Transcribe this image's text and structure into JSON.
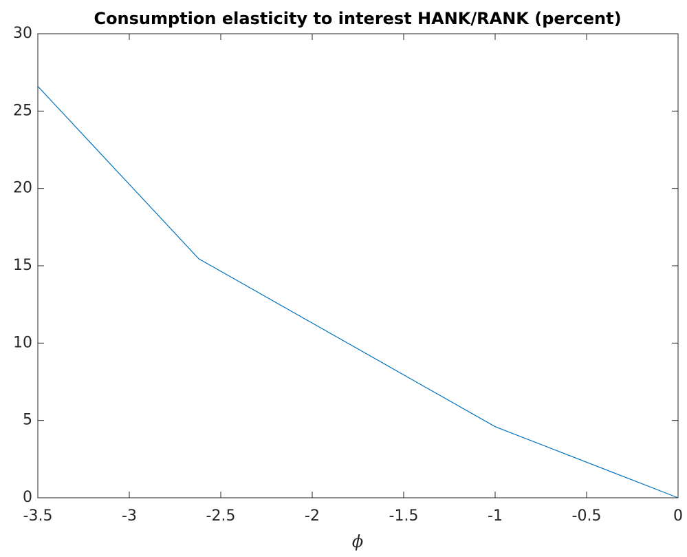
{
  "chart_data": {
    "type": "line",
    "title": "Consumption elasticity to interest HANK/RANK (percent)",
    "x_label": "ϕ",
    "x": [
      -3.5,
      -2.62,
      -1,
      0
    ],
    "values": [
      26.6,
      15.45,
      4.6,
      0
    ],
    "color": "#0072bd",
    "xlim": [
      -3.5,
      0
    ],
    "xticks": [
      -3.5,
      -3,
      -2.5,
      -2,
      -1.5,
      -1,
      -0.5,
      0
    ],
    "ylim": [
      0,
      30
    ],
    "yticks": [
      0,
      5,
      10,
      15,
      20,
      25,
      30
    ],
    "grid": false
  }
}
